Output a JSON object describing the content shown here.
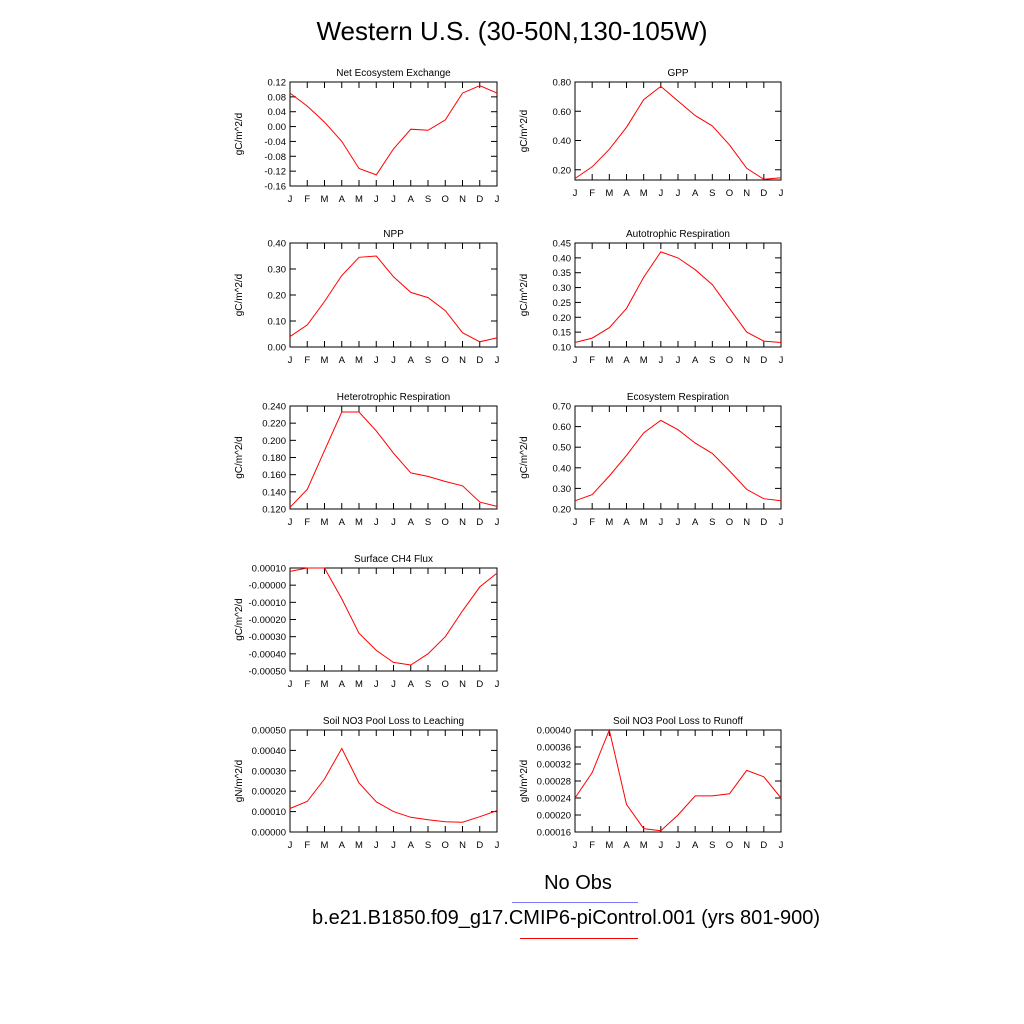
{
  "title": "Western U.S. (30-50N,130-105W)",
  "legend": {
    "obs_label": "No Obs",
    "obs_color": "#7a7aff",
    "model_label": "b.e21.B1850.f09_g17.CMIP6-piControl.001 (yrs 801-900)",
    "model_color": "#ff0000"
  },
  "chart_data": [
    {
      "type": "line",
      "title": "Net Ecosystem Exchange",
      "ylabel": "gC/m^2/d",
      "categories": [
        "J",
        "F",
        "M",
        "A",
        "M",
        "J",
        "J",
        "A",
        "S",
        "O",
        "N",
        "D",
        "J"
      ],
      "ylim": [
        -0.16,
        0.12
      ],
      "yticks": [
        -0.16,
        -0.12,
        -0.08,
        -0.04,
        0.0,
        0.04,
        0.08,
        0.12
      ],
      "ytick_labels": [
        "-0.16",
        "-0.12",
        "-0.08",
        "-0.04",
        "0.00",
        "0.04",
        "0.08",
        "0.12"
      ],
      "series": [
        {
          "values": [
            0.09,
            0.055,
            0.012,
            -0.04,
            -0.113,
            -0.13,
            -0.06,
            -0.007,
            -0.01,
            0.018,
            0.09,
            0.11,
            0.09
          ]
        }
      ]
    },
    {
      "type": "line",
      "title": "GPP",
      "ylabel": "gC/m^2/d",
      "categories": [
        "J",
        "F",
        "M",
        "A",
        "M",
        "J",
        "J",
        "A",
        "S",
        "O",
        "N",
        "D",
        "J"
      ],
      "ylim": [
        0.13,
        0.8
      ],
      "yticks": [
        0.2,
        0.4,
        0.6,
        0.8
      ],
      "ytick_labels": [
        "0.20",
        "0.40",
        "0.60",
        "0.80"
      ],
      "series": [
        {
          "values": [
            0.14,
            0.22,
            0.34,
            0.49,
            0.68,
            0.77,
            0.67,
            0.57,
            0.5,
            0.37,
            0.21,
            0.135,
            0.145
          ]
        }
      ]
    },
    {
      "type": "line",
      "title": "NPP",
      "ylabel": "gC/m^2/d",
      "categories": [
        "J",
        "F",
        "M",
        "A",
        "M",
        "J",
        "J",
        "A",
        "S",
        "O",
        "N",
        "D",
        "J"
      ],
      "ylim": [
        0.0,
        0.4
      ],
      "yticks": [
        0.0,
        0.1,
        0.2,
        0.3,
        0.4
      ],
      "ytick_labels": [
        "0.00",
        "0.10",
        "0.20",
        "0.30",
        "0.40"
      ],
      "series": [
        {
          "values": [
            0.04,
            0.085,
            0.175,
            0.275,
            0.345,
            0.35,
            0.27,
            0.21,
            0.19,
            0.14,
            0.055,
            0.02,
            0.035
          ]
        }
      ]
    },
    {
      "type": "line",
      "title": "Autotrophic Respiration",
      "ylabel": "gC/m^2/d",
      "categories": [
        "J",
        "F",
        "M",
        "A",
        "M",
        "J",
        "J",
        "A",
        "S",
        "O",
        "N",
        "D",
        "J"
      ],
      "ylim": [
        0.1,
        0.45
      ],
      "yticks": [
        0.1,
        0.15,
        0.2,
        0.25,
        0.3,
        0.35,
        0.4,
        0.45
      ],
      "ytick_labels": [
        "0.10",
        "0.15",
        "0.20",
        "0.25",
        "0.30",
        "0.35",
        "0.40",
        "0.45"
      ],
      "series": [
        {
          "values": [
            0.115,
            0.13,
            0.165,
            0.23,
            0.335,
            0.42,
            0.4,
            0.36,
            0.31,
            0.23,
            0.15,
            0.12,
            0.115
          ]
        }
      ]
    },
    {
      "type": "line",
      "title": "Heterotrophic Respiration",
      "ylabel": "gC/m^2/d",
      "categories": [
        "J",
        "F",
        "M",
        "A",
        "M",
        "J",
        "J",
        "A",
        "S",
        "O",
        "N",
        "D",
        "J"
      ],
      "ylim": [
        0.12,
        0.24
      ],
      "yticks": [
        0.12,
        0.14,
        0.16,
        0.18,
        0.2,
        0.22,
        0.24
      ],
      "ytick_labels": [
        "0.120",
        "0.140",
        "0.160",
        "0.180",
        "0.200",
        "0.220",
        "0.240"
      ],
      "series": [
        {
          "values": [
            0.122,
            0.143,
            0.188,
            0.233,
            0.233,
            0.211,
            0.185,
            0.162,
            0.158,
            0.152,
            0.147,
            0.128,
            0.123
          ]
        }
      ]
    },
    {
      "type": "line",
      "title": "Ecosystem Respiration",
      "ylabel": "gC/m^2/d",
      "categories": [
        "J",
        "F",
        "M",
        "A",
        "M",
        "J",
        "J",
        "A",
        "S",
        "O",
        "N",
        "D",
        "J"
      ],
      "ylim": [
        0.2,
        0.7
      ],
      "yticks": [
        0.2,
        0.3,
        0.4,
        0.5,
        0.6,
        0.7
      ],
      "ytick_labels": [
        "0.20",
        "0.30",
        "0.40",
        "0.50",
        "0.60",
        "0.70"
      ],
      "series": [
        {
          "values": [
            0.24,
            0.27,
            0.36,
            0.46,
            0.57,
            0.63,
            0.585,
            0.52,
            0.47,
            0.385,
            0.295,
            0.25,
            0.24
          ]
        }
      ]
    },
    {
      "type": "line",
      "title": "Surface CH4 Flux",
      "ylabel": "gC/m^2/d",
      "categories": [
        "J",
        "F",
        "M",
        "A",
        "M",
        "J",
        "J",
        "A",
        "S",
        "O",
        "N",
        "D",
        "J"
      ],
      "ylim": [
        -0.0005,
        0.0001
      ],
      "yticks": [
        -0.0005,
        -0.0004,
        -0.0003,
        -0.0002,
        -0.0001,
        0.0,
        0.0001
      ],
      "ytick_labels": [
        "-0.00050",
        "-0.00040",
        "-0.00030",
        "-0.00020",
        "-0.00010",
        "-0.00000",
        "0.00010"
      ],
      "series": [
        {
          "values": [
            8e-05,
            0.0001,
            0.0001,
            -8e-05,
            -0.00028,
            -0.00038,
            -0.00045,
            -0.000465,
            -0.0004,
            -0.0003,
            -0.00015,
            -1e-05,
            7e-05
          ]
        }
      ]
    },
    {
      "type": "line",
      "title": "Soil NO3 Pool Loss to Leaching",
      "ylabel": "gN/m^2/d",
      "categories": [
        "J",
        "F",
        "M",
        "A",
        "M",
        "J",
        "J",
        "A",
        "S",
        "O",
        "N",
        "D",
        "J"
      ],
      "ylim": [
        0.0,
        0.0005
      ],
      "yticks": [
        0.0,
        0.0001,
        0.0002,
        0.0003,
        0.0004,
        0.0005
      ],
      "ytick_labels": [
        "0.00000",
        "0.00010",
        "0.00020",
        "0.00030",
        "0.00040",
        "0.00050"
      ],
      "series": [
        {
          "values": [
            0.000115,
            0.00015,
            0.00026,
            0.00041,
            0.00024,
            0.000148,
            0.0001,
            7.2e-05,
            6e-05,
            5e-05,
            4.8e-05,
            7.5e-05,
            0.000105
          ]
        }
      ]
    },
    {
      "type": "line",
      "title": "Soil NO3 Pool Loss to Runoff",
      "ylabel": "gN/m^2/d",
      "categories": [
        "J",
        "F",
        "M",
        "A",
        "M",
        "J",
        "J",
        "A",
        "S",
        "O",
        "N",
        "D",
        "J"
      ],
      "ylim": [
        0.00016,
        0.0004
      ],
      "yticks": [
        0.00016,
        0.0002,
        0.00024,
        0.00028,
        0.00032,
        0.00036,
        0.0004
      ],
      "ytick_labels": [
        "0.00016",
        "0.00020",
        "0.00024",
        "0.00028",
        "0.00032",
        "0.00036",
        "0.00040"
      ],
      "series": [
        {
          "values": [
            0.00024,
            0.0003,
            0.0004,
            0.000225,
            0.000168,
            0.000163,
            0.0002,
            0.000245,
            0.000245,
            0.00025,
            0.000305,
            0.00029,
            0.00024
          ]
        }
      ]
    }
  ]
}
